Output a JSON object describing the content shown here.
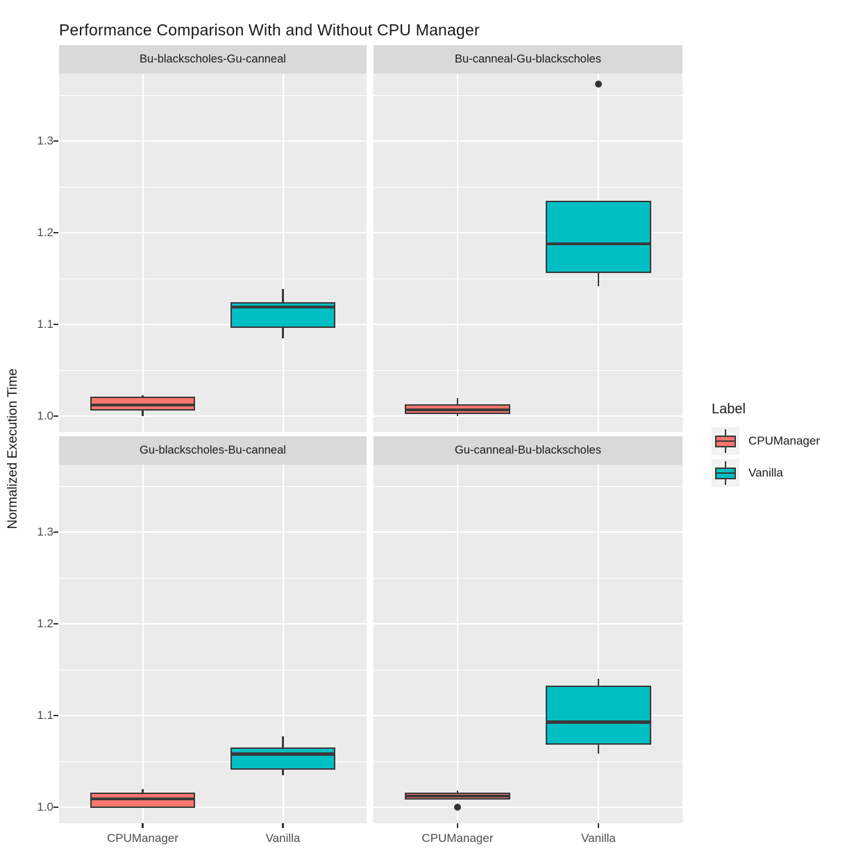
{
  "chart_data": {
    "type": "boxplot",
    "title": "Performance Comparison With and Without CPU Manager",
    "ylabel": "Normalized Execution Time",
    "x_categories": [
      "CPUManager",
      "Vanilla"
    ],
    "y_tick_labels": [
      "1.0",
      "1.1",
      "1.2",
      "1.3"
    ],
    "y_tick_values": [
      1.0,
      1.1,
      1.2,
      1.3
    ],
    "y_minor_tick_values": [
      1.05,
      1.15,
      1.25,
      1.35
    ],
    "y_range_rendered": [
      0.9826,
      1.3735
    ],
    "grid": true,
    "colors": {
      "CPUManager": "#F8766D",
      "Vanilla": "#00BFC4",
      "panel_bg": "#EBEBEB",
      "strip_bg": "#D9D9D9",
      "box_border": "#3A3A3A",
      "outlier": "#333333",
      "axis_text": "#4D4D4D",
      "gridline": "#FFFFFF"
    },
    "legend": {
      "title": "Label",
      "position": "right",
      "entries": [
        {
          "label": "CPUManager",
          "color": "#F8766D"
        },
        {
          "label": "Vanilla",
          "color": "#00BFC4"
        }
      ]
    },
    "facets": [
      {
        "label": "Bu-blackscholes-Gu-canneal",
        "boxes": [
          {
            "group": "CPUManager",
            "min": 1.0,
            "q1": 1.006,
            "median": 1.012,
            "q3": 1.021,
            "max": 1.023,
            "outliers": []
          },
          {
            "group": "Vanilla",
            "min": 1.085,
            "q1": 1.096,
            "median": 1.119,
            "q3": 1.124,
            "max": 1.139,
            "outliers": []
          }
        ]
      },
      {
        "label": "Bu-canneal-Gu-blackscholes",
        "boxes": [
          {
            "group": "CPUManager",
            "min": 1.0,
            "q1": 1.002,
            "median": 1.007,
            "q3": 1.013,
            "max": 1.02,
            "outliers": []
          },
          {
            "group": "Vanilla",
            "min": 1.142,
            "q1": 1.156,
            "median": 1.188,
            "q3": 1.235,
            "max": 1.235,
            "outliers": [
              1.362
            ]
          }
        ]
      },
      {
        "label": "Gu-blackscholes-Bu-canneal",
        "boxes": [
          {
            "group": "CPUManager",
            "min": 0.999,
            "q1": 0.999,
            "median": 1.009,
            "q3": 1.016,
            "max": 1.02,
            "outliers": []
          },
          {
            "group": "Vanilla",
            "min": 1.035,
            "q1": 1.041,
            "median": 1.058,
            "q3": 1.065,
            "max": 1.077,
            "outliers": []
          }
        ]
      },
      {
        "label": "Gu-canneal-Bu-blackscholes",
        "boxes": [
          {
            "group": "CPUManager",
            "min": 1.008,
            "q1": 1.008,
            "median": 1.012,
            "q3": 1.016,
            "max": 1.018,
            "outliers": [
              1.0
            ]
          },
          {
            "group": "Vanilla",
            "min": 1.058,
            "q1": 1.068,
            "median": 1.093,
            "q3": 1.133,
            "max": 1.14,
            "outliers": []
          }
        ]
      }
    ]
  }
}
